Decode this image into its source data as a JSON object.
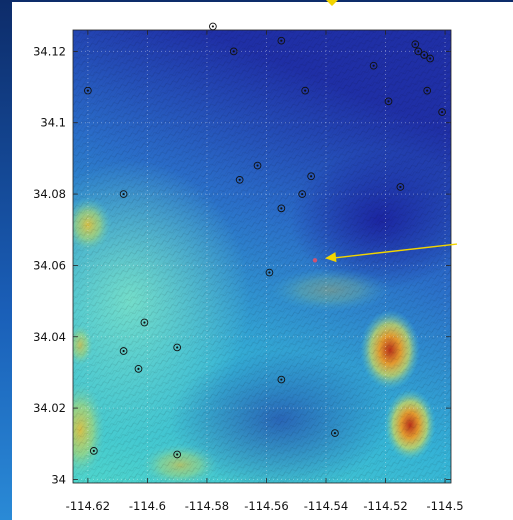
{
  "map": {
    "x_axis": {
      "ticks": [
        "-114.62",
        "-114.6",
        "-114.58",
        "-114.56",
        "-114.54",
        "-114.52",
        "-114.5"
      ],
      "tick_values": [
        -114.62,
        -114.6,
        -114.58,
        -114.56,
        -114.54,
        -114.52,
        -114.5
      ],
      "range": [
        -114.625,
        -114.498
      ]
    },
    "y_axis": {
      "ticks": [
        "34",
        "34.02",
        "34.04",
        "34.06",
        "34.08",
        "34.1",
        "34.12"
      ],
      "tick_values": [
        34,
        34.02,
        34.04,
        34.06,
        34.08,
        34.1,
        34.12
      ],
      "range": [
        33.999,
        34.126
      ]
    },
    "grid": true,
    "basemap": "shaded-relief-elevation",
    "colormap": [
      "#1d2fa8",
      "#2a74cc",
      "#2fb8d4",
      "#5fd8c8",
      "#bcd96a",
      "#e9b23a",
      "#c24a1c"
    ],
    "annotation_color": "#f2d400",
    "markers": [
      {
        "lon": -114.578,
        "lat": 34.127
      },
      {
        "lon": -114.555,
        "lat": 34.123
      },
      {
        "lon": -114.571,
        "lat": 34.12
      },
      {
        "lon": -114.524,
        "lat": 34.116
      },
      {
        "lon": -114.51,
        "lat": 34.122
      },
      {
        "lon": -114.509,
        "lat": 34.12
      },
      {
        "lon": -114.507,
        "lat": 34.119
      },
      {
        "lon": -114.505,
        "lat": 34.118
      },
      {
        "lon": -114.62,
        "lat": 34.109
      },
      {
        "lon": -114.547,
        "lat": 34.109
      },
      {
        "lon": -114.519,
        "lat": 34.106
      },
      {
        "lon": -114.506,
        "lat": 34.109
      },
      {
        "lon": -114.501,
        "lat": 34.103
      },
      {
        "lon": -114.569,
        "lat": 34.084
      },
      {
        "lon": -114.563,
        "lat": 34.088
      },
      {
        "lon": -114.545,
        "lat": 34.085
      },
      {
        "lon": -114.548,
        "lat": 34.08
      },
      {
        "lon": -114.608,
        "lat": 34.08
      },
      {
        "lon": -114.555,
        "lat": 34.076
      },
      {
        "lon": -114.515,
        "lat": 34.082
      },
      {
        "lon": -114.559,
        "lat": 34.058
      },
      {
        "lon": -114.601,
        "lat": 34.044
      },
      {
        "lon": -114.59,
        "lat": 34.037
      },
      {
        "lon": -114.608,
        "lat": 34.036
      },
      {
        "lon": -114.603,
        "lat": 34.031
      },
      {
        "lon": -114.555,
        "lat": 34.028
      },
      {
        "lon": -114.537,
        "lat": 34.013
      },
      {
        "lon": -114.59,
        "lat": 34.007
      },
      {
        "lon": -114.618,
        "lat": 34.008
      }
    ],
    "target": {
      "lon": -114.541,
      "lat": 34.062
    },
    "arrow_tail": {
      "lon": -114.496,
      "lat": 34.066
    }
  }
}
